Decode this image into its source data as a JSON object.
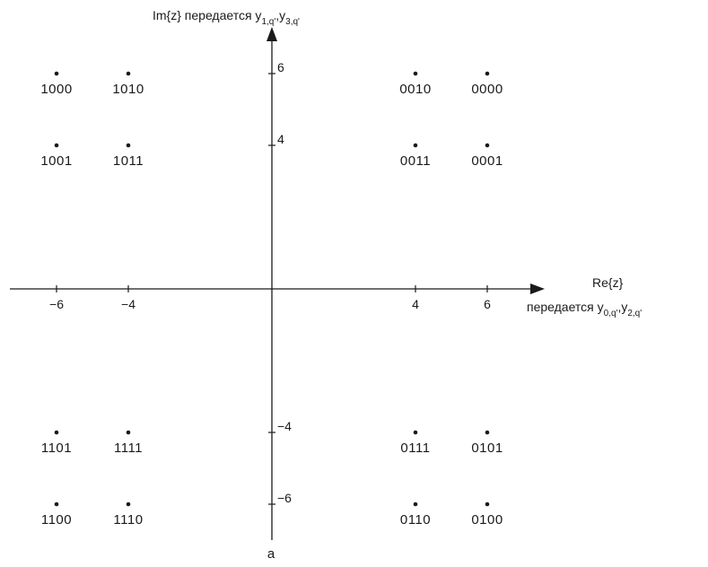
{
  "chart_data": {
    "type": "scatter",
    "title": "",
    "caption": "a",
    "xlabel": {
      "line1": "Re{z}",
      "line2_prefix": "передается y",
      "sub1": "0,q'",
      "sep": ",y",
      "sub2": "2,q'"
    },
    "ylabel": {
      "prefix": "Im{z} передается y",
      "sub1": "1,q'",
      "sep": ",y",
      "sub2": "3,q'"
    },
    "xlim": [
      -7.3,
      7.6
    ],
    "ylim": [
      -7,
      7.3
    ],
    "x_ticks": [
      {
        "value": -6,
        "label": "−6"
      },
      {
        "value": -4,
        "label": "−4"
      },
      {
        "value": 4,
        "label": "4"
      },
      {
        "value": 6,
        "label": "6"
      }
    ],
    "y_ticks": [
      {
        "value": 6,
        "label": "6"
      },
      {
        "value": 4,
        "label": "4"
      },
      {
        "value": -4,
        "label": "−4"
      },
      {
        "value": -6,
        "label": "−6"
      }
    ],
    "points": [
      {
        "x": -6,
        "y": 6,
        "label": "1000"
      },
      {
        "x": -4,
        "y": 6,
        "label": "1010"
      },
      {
        "x": 4,
        "y": 6,
        "label": "0010"
      },
      {
        "x": 6,
        "y": 6,
        "label": "0000"
      },
      {
        "x": -6,
        "y": 4,
        "label": "1001"
      },
      {
        "x": -4,
        "y": 4,
        "label": "1011"
      },
      {
        "x": 4,
        "y": 4,
        "label": "0011"
      },
      {
        "x": 6,
        "y": 4,
        "label": "0001"
      },
      {
        "x": -6,
        "y": -4,
        "label": "1101"
      },
      {
        "x": -4,
        "y": -4,
        "label": "1111"
      },
      {
        "x": 4,
        "y": -4,
        "label": "0111"
      },
      {
        "x": 6,
        "y": -4,
        "label": "0101"
      },
      {
        "x": -6,
        "y": -6,
        "label": "1100"
      },
      {
        "x": -4,
        "y": -6,
        "label": "1110"
      },
      {
        "x": 4,
        "y": -6,
        "label": "0110"
      },
      {
        "x": 6,
        "y": -6,
        "label": "0100"
      }
    ]
  }
}
